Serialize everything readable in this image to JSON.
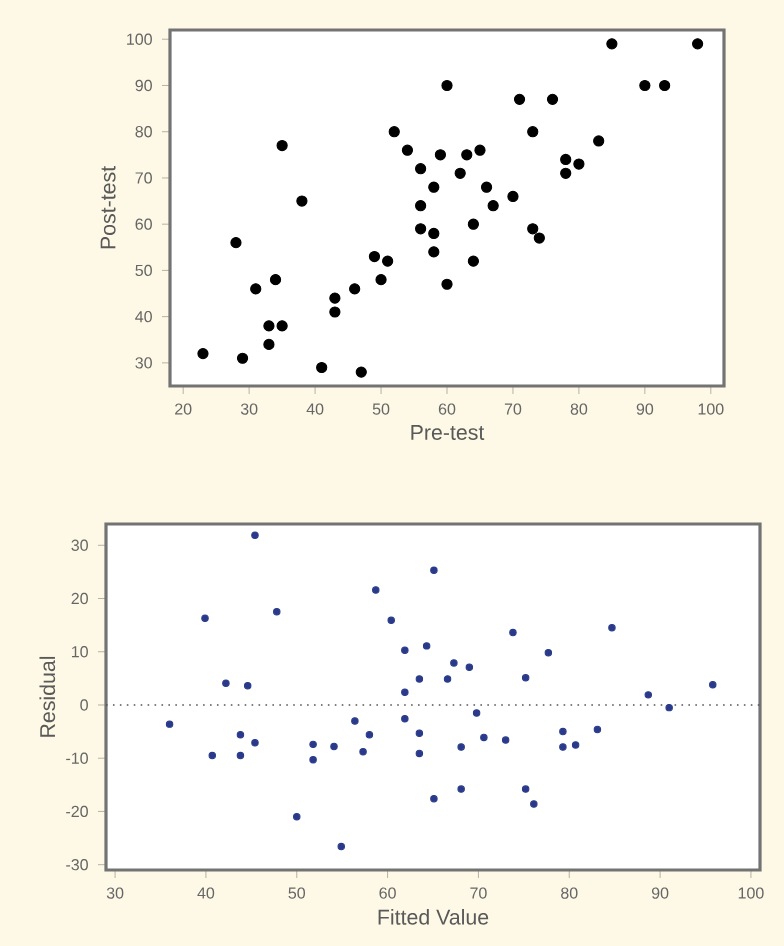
{
  "chart_data": [
    {
      "type": "scatter",
      "xlabel": "Pre-test",
      "ylabel": "Post-test",
      "xlim": [
        18,
        102
      ],
      "ylim": [
        25,
        102
      ],
      "xticks": [
        20,
        30,
        40,
        50,
        60,
        70,
        80,
        90,
        100
      ],
      "yticks": [
        30,
        40,
        50,
        60,
        70,
        80,
        90,
        100
      ],
      "series": [
        {
          "color": "#000000",
          "x": [
            23,
            28,
            29,
            31,
            33,
            33,
            34,
            35,
            35,
            38,
            41,
            43,
            43,
            46,
            47,
            49,
            50,
            51,
            52,
            54,
            56,
            56,
            56,
            58,
            58,
            58,
            59,
            60,
            60,
            62,
            63,
            64,
            64,
            65,
            66,
            67,
            70,
            71,
            73,
            73,
            74,
            76,
            78,
            78,
            80,
            83,
            85,
            90,
            93,
            98
          ],
          "values": [
            32,
            56,
            31,
            46,
            38,
            34,
            48,
            77,
            38,
            65,
            29,
            44,
            41,
            46,
            28,
            53,
            48,
            52,
            80,
            76,
            72,
            64,
            59,
            58,
            54,
            68,
            75,
            90,
            47,
            71,
            75,
            60,
            52,
            76,
            68,
            64,
            66,
            87,
            80,
            59,
            57,
            87,
            74,
            71,
            73,
            78,
            99,
            90,
            90,
            99
          ]
        }
      ]
    },
    {
      "type": "scatter",
      "xlabel": "Fitted Value",
      "ylabel": "Residual",
      "xlim": [
        29,
        101
      ],
      "ylim": [
        -31,
        34
      ],
      "xticks": [
        30,
        40,
        50,
        60,
        70,
        80,
        90,
        100
      ],
      "yticks": [
        -30,
        -20,
        -10,
        0,
        10,
        20,
        30
      ],
      "ref_lines": [
        {
          "axis": "y",
          "value": 0,
          "line_style": "dotted",
          "color": "#555555"
        }
      ],
      "series": [
        {
          "color": "#2a3a8a",
          "x": [
            36.0,
            39.9,
            40.7,
            42.2,
            43.8,
            43.8,
            44.6,
            45.4,
            45.4,
            47.8,
            50.0,
            51.8,
            51.8,
            54.1,
            54.9,
            56.4,
            57.3,
            58.0,
            58.7,
            60.4,
            61.9,
            61.9,
            61.9,
            63.5,
            63.5,
            63.5,
            64.3,
            65.1,
            65.1,
            66.6,
            67.3,
            68.1,
            68.1,
            69.0,
            69.8,
            70.6,
            73.0,
            73.8,
            75.2,
            75.2,
            76.1,
            77.7,
            79.3,
            79.3,
            80.7,
            83.1,
            84.7,
            88.7,
            91.0,
            95.8
          ],
          "values": [
            -3.6,
            16.3,
            -9.5,
            4.1,
            -5.6,
            -9.5,
            3.6,
            31.9,
            -7.1,
            17.5,
            -21.0,
            -7.4,
            -10.3,
            -7.8,
            -26.6,
            -3.0,
            -8.8,
            -5.6,
            21.6,
            15.9,
            10.3,
            2.4,
            -2.6,
            4.9,
            -5.3,
            -9.1,
            11.1,
            25.3,
            -17.6,
            4.9,
            7.9,
            -7.9,
            -15.8,
            7.1,
            -1.5,
            -6.1,
            -6.6,
            13.6,
            5.1,
            -15.8,
            -18.6,
            9.8,
            -5.0,
            -7.9,
            -7.5,
            -4.6,
            14.5,
            1.9,
            -0.5,
            3.8
          ]
        }
      ]
    }
  ]
}
